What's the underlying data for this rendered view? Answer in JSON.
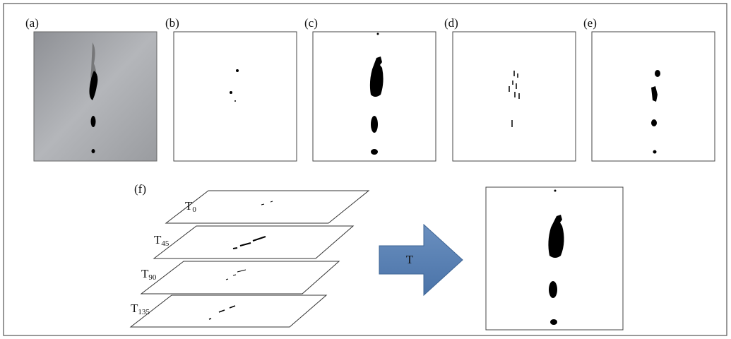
{
  "panels": [
    {
      "label": "(a)"
    },
    {
      "label": "(b)"
    },
    {
      "label": "(c)"
    },
    {
      "label": "(d)"
    },
    {
      "label": "(e)"
    }
  ],
  "fusion": {
    "label": "(f)",
    "layers": [
      {
        "letter": "T",
        "subscript": "0"
      },
      {
        "letter": "T",
        "subscript": "45"
      },
      {
        "letter": "T",
        "subscript": "90"
      },
      {
        "letter": "T",
        "subscript": "135"
      }
    ],
    "operator": "T"
  }
}
